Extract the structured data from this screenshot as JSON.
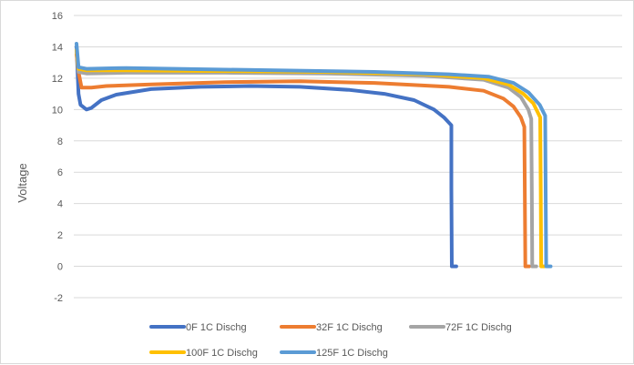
{
  "chart_data": {
    "type": "line",
    "title": "",
    "xlabel": "",
    "ylabel": "Voltage",
    "ylim": [
      -2,
      16
    ],
    "yticks": [
      -2,
      0,
      2,
      4,
      6,
      8,
      10,
      12,
      14,
      16
    ],
    "xlim": [
      0,
      100
    ],
    "grid": true,
    "legend_position": "bottom",
    "series": [
      {
        "name": "0F 1C Dischg",
        "color": "#4472C4",
        "points": [
          [
            0,
            14.0
          ],
          [
            0.4,
            11.0
          ],
          [
            0.8,
            10.3
          ],
          [
            2,
            10.0
          ],
          [
            3,
            10.1
          ],
          [
            5,
            10.6
          ],
          [
            8,
            10.95
          ],
          [
            15,
            11.3
          ],
          [
            25,
            11.45
          ],
          [
            35,
            11.5
          ],
          [
            45,
            11.45
          ],
          [
            55,
            11.25
          ],
          [
            62,
            11.0
          ],
          [
            68,
            10.6
          ],
          [
            72,
            10.0
          ],
          [
            74,
            9.5
          ],
          [
            75.5,
            9.0
          ],
          [
            75.5,
            5.0
          ],
          [
            75.6,
            0
          ],
          [
            76.5,
            0
          ]
        ]
      },
      {
        "name": "32F 1C Dischg",
        "color": "#ED7D31",
        "points": [
          [
            0,
            13.5
          ],
          [
            0.4,
            12.4
          ],
          [
            1,
            11.4
          ],
          [
            3,
            11.4
          ],
          [
            6,
            11.5
          ],
          [
            15,
            11.6
          ],
          [
            30,
            11.75
          ],
          [
            45,
            11.8
          ],
          [
            60,
            11.7
          ],
          [
            75,
            11.45
          ],
          [
            82,
            11.2
          ],
          [
            86,
            10.7
          ],
          [
            88,
            10.2
          ],
          [
            89.5,
            9.5
          ],
          [
            90.2,
            8.9
          ],
          [
            90.3,
            5.0
          ],
          [
            90.4,
            0
          ],
          [
            91.2,
            0
          ]
        ]
      },
      {
        "name": "72F 1C Dischg",
        "color": "#A5A5A5",
        "points": [
          [
            0,
            13.8
          ],
          [
            0.4,
            12.4
          ],
          [
            2,
            12.3
          ],
          [
            10,
            12.35
          ],
          [
            30,
            12.35
          ],
          [
            50,
            12.3
          ],
          [
            70,
            12.15
          ],
          [
            82,
            11.9
          ],
          [
            87,
            11.4
          ],
          [
            89.5,
            10.8
          ],
          [
            91,
            10.0
          ],
          [
            91.6,
            9.4
          ],
          [
            91.7,
            5.0
          ],
          [
            91.8,
            0
          ],
          [
            92.6,
            0
          ]
        ]
      },
      {
        "name": "100F 1C Dischg",
        "color": "#FFC000",
        "points": [
          [
            0,
            13.8
          ],
          [
            0.4,
            12.6
          ],
          [
            2,
            12.5
          ],
          [
            10,
            12.5
          ],
          [
            30,
            12.45
          ],
          [
            50,
            12.4
          ],
          [
            70,
            12.25
          ],
          [
            82,
            12.0
          ],
          [
            87,
            11.6
          ],
          [
            90,
            11.0
          ],
          [
            92,
            10.4
          ],
          [
            93.4,
            9.5
          ],
          [
            93.5,
            5.0
          ],
          [
            93.6,
            0
          ],
          [
            94.3,
            0
          ]
        ]
      },
      {
        "name": "125F 1C Dischg",
        "color": "#5B9BD5",
        "points": [
          [
            0,
            14.2
          ],
          [
            0.4,
            12.7
          ],
          [
            2,
            12.6
          ],
          [
            10,
            12.65
          ],
          [
            20,
            12.6
          ],
          [
            40,
            12.5
          ],
          [
            60,
            12.4
          ],
          [
            75,
            12.25
          ],
          [
            83,
            12.1
          ],
          [
            88,
            11.7
          ],
          [
            91,
            11.1
          ],
          [
            93.3,
            10.3
          ],
          [
            94.4,
            9.6
          ],
          [
            94.5,
            5.0
          ],
          [
            94.6,
            0
          ],
          [
            95.5,
            0
          ]
        ]
      }
    ]
  }
}
